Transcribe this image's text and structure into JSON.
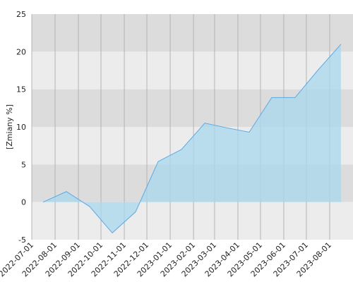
{
  "chart_data": {
    "type": "area",
    "y_label": "[Zmiany %]",
    "x": [
      "2022-07-16",
      "2022-08-16",
      "2022-09-16",
      "2022-10-16",
      "2022-11-16",
      "2022-12-16",
      "2023-01-16",
      "2023-02-16",
      "2023-03-16",
      "2023-04-16",
      "2023-05-16",
      "2023-06-16",
      "2023-07-16",
      "2023-08-16"
    ],
    "series": [
      {
        "color": "#5aa9e6",
        "fill": "#a8d8ee",
        "values": [
          0,
          1.4,
          -0.6,
          -4.1,
          -1.3,
          5.4,
          7.0,
          10.5,
          9.9,
          9.3,
          13.9,
          13.9,
          17.5,
          21.0
        ]
      }
    ],
    "xlim": [
      "2022-07-01",
      "2023-09-01"
    ],
    "xticks": [
      "2022-07-01",
      "2022-08-01",
      "2022-09-01",
      "2022-10-01",
      "2022-11-01",
      "2022-12-01",
      "2023-01-01",
      "2023-02-01",
      "2023-03-01",
      "2023-04-01",
      "2023-05-01",
      "2023-06-01",
      "2023-07-01",
      "2023-08-01"
    ],
    "ylim": [
      -5,
      25
    ],
    "yticks": [
      -5,
      0,
      5,
      10,
      15,
      20,
      25
    ],
    "grid": true
  }
}
